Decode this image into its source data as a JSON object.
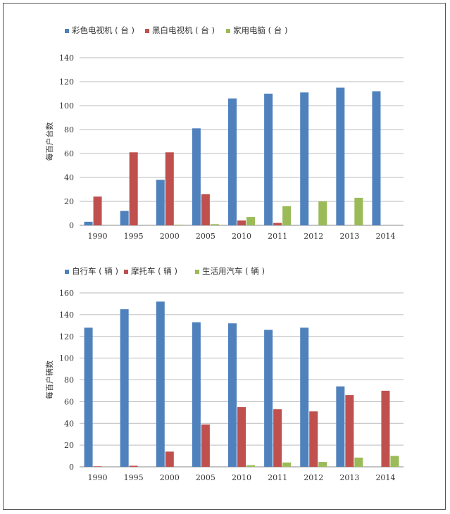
{
  "chart_data": [
    {
      "type": "bar",
      "categories": [
        "1990",
        "1995",
        "2000",
        "2005",
        "2010",
        "2011",
        "2012",
        "2013",
        "2014"
      ],
      "series": [
        {
          "name": "彩色电视机 ( 台 )",
          "color": "#4F81BD",
          "values": [
            3,
            12,
            38,
            81,
            106,
            110,
            111,
            115,
            112
          ]
        },
        {
          "name": "黑白电视机 ( 台 )",
          "color": "#C0504D",
          "values": [
            24,
            61,
            61,
            26,
            4,
            2,
            0,
            0,
            0
          ]
        },
        {
          "name": "家用电脑 ( 台 )",
          "color": "#9BBB59",
          "values": [
            0,
            0,
            0.5,
            1,
            7,
            16,
            20,
            23,
            0
          ]
        }
      ],
      "ylabel": "每百户台数",
      "ylim": [
        0,
        140
      ],
      "yticks": [
        0,
        20,
        40,
        60,
        80,
        100,
        120,
        140
      ],
      "grid": true,
      "legend": "top-left"
    },
    {
      "type": "bar",
      "categories": [
        "1990",
        "1995",
        "2000",
        "2005",
        "2010",
        "2011",
        "2012",
        "2013",
        "2014"
      ],
      "series": [
        {
          "name": "自行车 ( 辆 )",
          "color": "#4F81BD",
          "values": [
            128,
            145,
            152,
            133,
            132,
            126,
            128,
            74,
            0
          ]
        },
        {
          "name": "摩托车 ( 辆 )",
          "color": "#C0504D",
          "values": [
            0.5,
            1,
            14,
            39,
            55,
            53,
            51,
            66,
            70
          ]
        },
        {
          "name": "生活用汽车 ( 辆 )",
          "color": "#9BBB59",
          "values": [
            0,
            0,
            0,
            0,
            1.5,
            4,
            4.5,
            8.5,
            10
          ]
        }
      ],
      "ylabel": "每百户辆数",
      "ylim": [
        0,
        160
      ],
      "yticks": [
        0,
        20,
        40,
        60,
        80,
        100,
        120,
        140,
        160
      ],
      "grid": true,
      "legend": "top-left"
    }
  ]
}
